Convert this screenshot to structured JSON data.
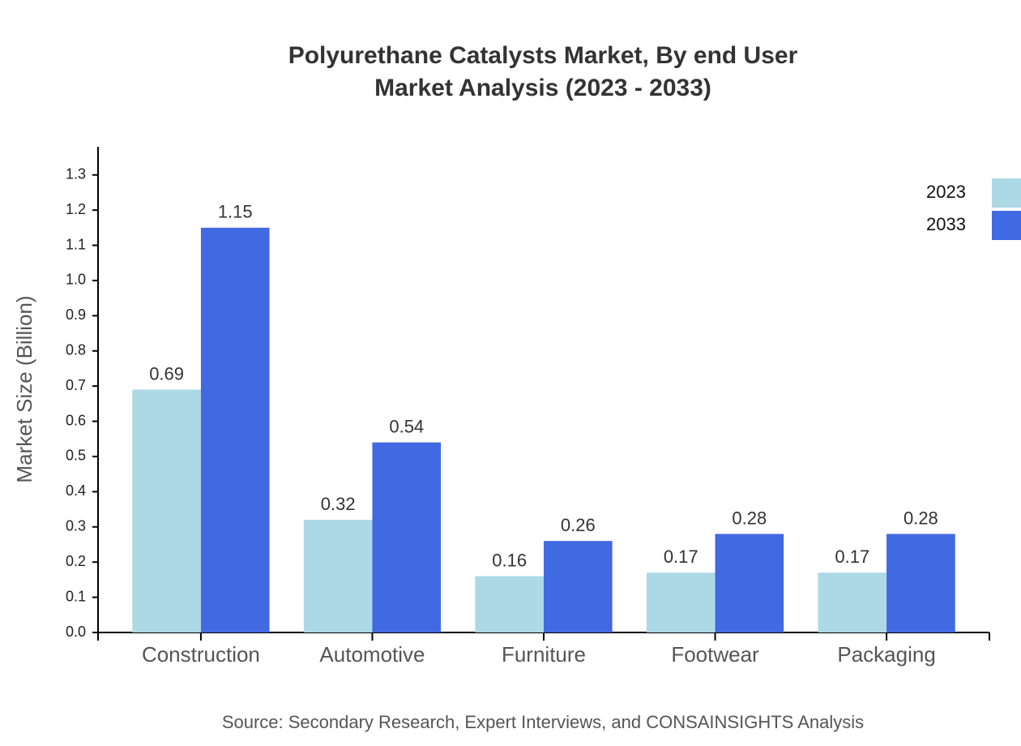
{
  "chart_data": {
    "type": "bar",
    "title": [
      "Polyurethane Catalysts Market, By end User",
      "Market Analysis (2023 - 2033)"
    ],
    "y_label": "Market Size (Billion)",
    "source": "Source: Secondary Research, Expert Interviews, and CONSAINSIGHTS Analysis",
    "categories": [
      "Construction",
      "Automotive",
      "Furniture",
      "Footwear",
      "Packaging"
    ],
    "series": [
      {
        "name": "2023",
        "color": "#add8e6",
        "values": [
          0.69,
          0.32,
          0.16,
          0.17,
          0.17
        ]
      },
      {
        "name": "2033",
        "color": "#4169e1",
        "values": [
          1.15,
          0.54,
          0.26,
          0.28,
          0.28
        ]
      }
    ],
    "ylim": [
      0,
      1.38
    ],
    "yticks": [
      {
        "value": 0,
        "label": "0.0"
      },
      0.1,
      0.2,
      0.3,
      0.4,
      0.5,
      0.6,
      0.7,
      0.8,
      0.9,
      {
        "value": 1,
        "label": "1.0"
      },
      1.1,
      1.2,
      1.3
    ],
    "grid": false,
    "legend": "top-right"
  }
}
